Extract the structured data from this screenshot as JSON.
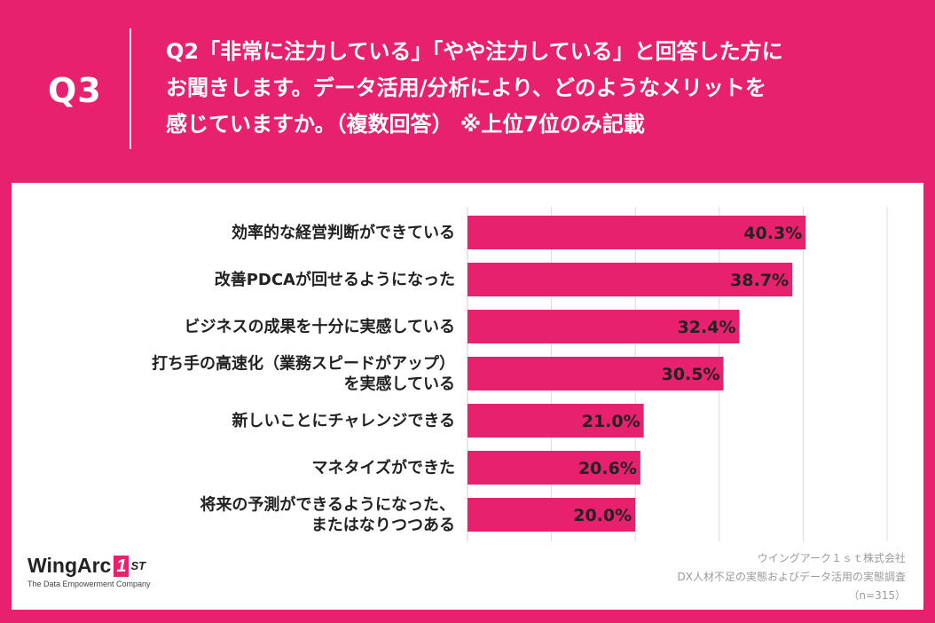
{
  "header": {
    "qnum": "Q3",
    "lines": [
      "Q2「非常に注力している」「やや注力している」と回答した方に",
      "お聞きします。データ活用/分析により、どのようなメリットを",
      "感じていますか。（複数回答） ※上位7位のみ記載"
    ]
  },
  "chart_data": {
    "type": "bar",
    "orientation": "horizontal",
    "categories": [
      [
        "効率的な経営判断ができている"
      ],
      [
        "改善PDCAが回せるようになった"
      ],
      [
        "ビジネスの成果を十分に実感している"
      ],
      [
        "打ち手の高速化（業務スピードがアップ）",
        "を実感している"
      ],
      [
        "新しいことにチャレンジできる"
      ],
      [
        "マネタイズができた"
      ],
      [
        "将来の予測ができるようになった、",
        "またはなりつつある"
      ]
    ],
    "values": [
      40.3,
      38.7,
      32.4,
      30.5,
      21.0,
      20.6,
      20.0
    ],
    "value_labels": [
      "40.3%",
      "38.7%",
      "32.4%",
      "30.5%",
      "21.0%",
      "20.6%",
      "20.0%"
    ],
    "xlim": [
      0,
      50
    ],
    "grid": true,
    "bar_color": "#E8216E"
  },
  "logo": {
    "main": "WingArc",
    "badge": "1",
    "st": "ST",
    "tagline": "The Data Empowerment Company"
  },
  "source": {
    "lines": [
      "ウイングアーク１ｓｔ株式会社",
      "DX人材不足の実態およびデータ活用の実態調査",
      "（n=315）"
    ]
  }
}
